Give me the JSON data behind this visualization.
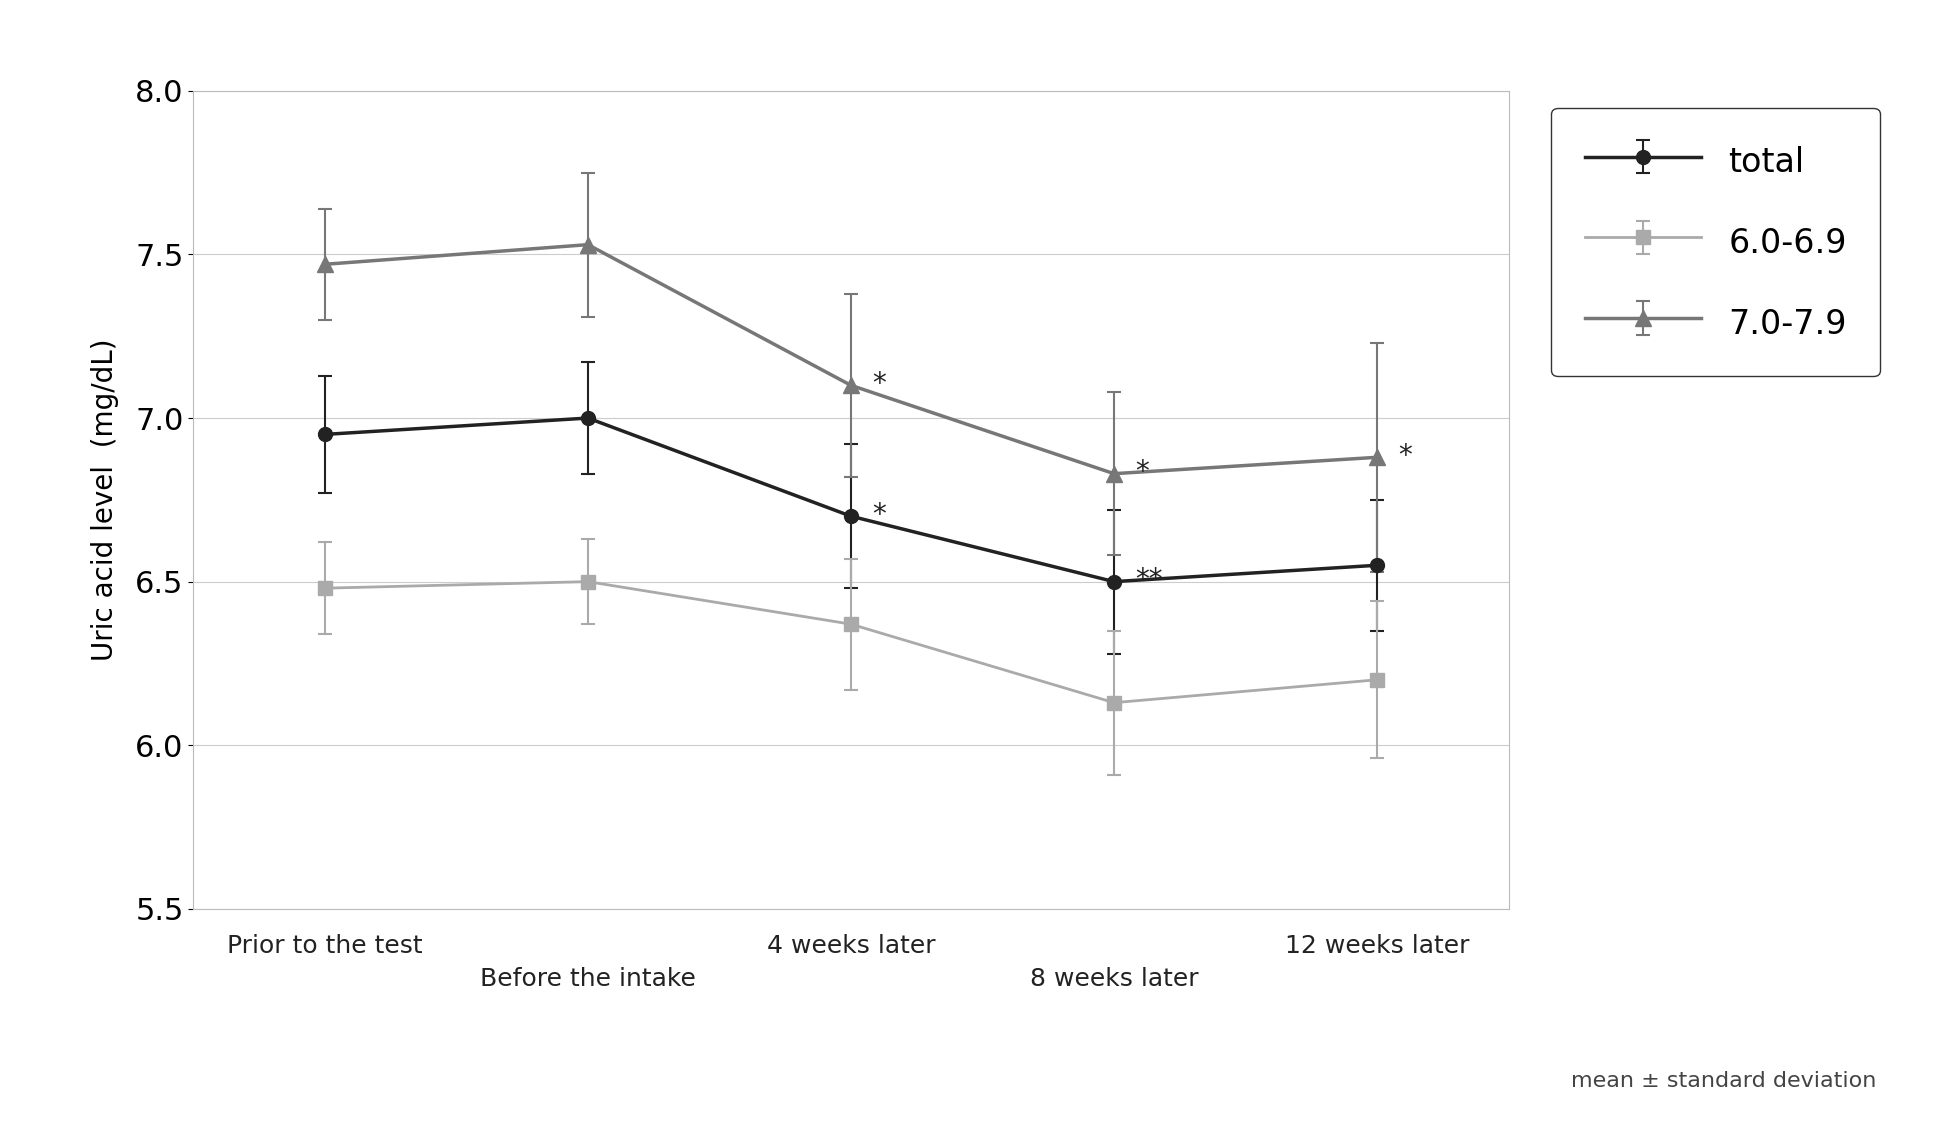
{
  "x_positions": [
    0,
    1,
    2,
    3,
    4
  ],
  "series": [
    {
      "label": "total",
      "color": "#222222",
      "marker": "o",
      "linewidth": 2.5,
      "markersize": 10,
      "values": [
        6.95,
        7.0,
        6.7,
        6.5,
        6.55
      ],
      "errors": [
        0.18,
        0.17,
        0.22,
        0.22,
        0.2
      ]
    },
    {
      "label": "6.0-6.9",
      "color": "#aaaaaa",
      "marker": "s",
      "linewidth": 2.0,
      "markersize": 10,
      "values": [
        6.48,
        6.5,
        6.37,
        6.13,
        6.2
      ],
      "errors": [
        0.14,
        0.13,
        0.2,
        0.22,
        0.24
      ]
    },
    {
      "label": "7.0-7.9",
      "color": "#777777",
      "marker": "^",
      "linewidth": 2.5,
      "markersize": 11,
      "values": [
        7.47,
        7.53,
        7.1,
        6.83,
        6.88
      ],
      "errors": [
        0.17,
        0.22,
        0.28,
        0.25,
        0.35
      ]
    }
  ],
  "annotations": [
    {
      "xi": 2,
      "si": 0,
      "text": "*"
    },
    {
      "xi": 2,
      "si": 2,
      "text": "*"
    },
    {
      "xi": 3,
      "si": 0,
      "text": "**"
    },
    {
      "xi": 3,
      "si": 2,
      "text": "*"
    },
    {
      "xi": 4,
      "si": 2,
      "text": "*"
    }
  ],
  "ylim": [
    5.5,
    8.0
  ],
  "yticks": [
    5.5,
    6.0,
    6.5,
    7.0,
    7.5,
    8.0
  ],
  "ylabel": "Uric acid level  (mg/dL)",
  "note": "mean ± standard deviation",
  "top_labels": {
    "0": "Prior to the test",
    "2": "4 weeks later",
    "4": "12 weeks later"
  },
  "bot_labels": {
    "1": "Before the intake",
    "3": "8 weeks later"
  },
  "background_color": "#ffffff",
  "plot_bg_color": "#ffffff",
  "border_color": "#bbbbbb",
  "grid_color": "#cccccc"
}
